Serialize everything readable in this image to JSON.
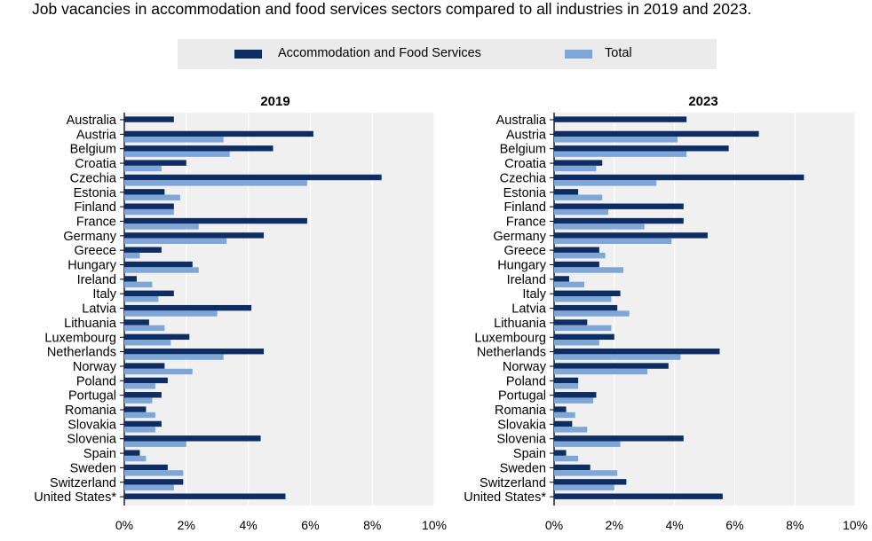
{
  "title": "Job vacancies in accommodation and food services sectors compared to all industries in 2019 and 2023.",
  "colors": {
    "accommodation": "#0e2d63",
    "total": "#7ea7d8",
    "panel": "#f0f0f0",
    "legend_bg": "#ebebeb"
  },
  "legend": {
    "accommodation_label": "Accommodation and Food Services",
    "total_label": "Total"
  },
  "chart_data": [
    {
      "type": "bar",
      "orientation": "horizontal",
      "title": "2019",
      "categories": [
        "Australia",
        "Austria",
        "Belgium",
        "Croatia",
        "Czechia",
        "Estonia",
        "Finland",
        "France",
        "Germany",
        "Greece",
        "Hungary",
        "Ireland",
        "Italy",
        "Latvia",
        "Lithuania",
        "Luxembourg",
        "Netherlands",
        "Norway",
        "Poland",
        "Portugal",
        "Romania",
        "Slovakia",
        "Slovenia",
        "Spain",
        "Sweden",
        "Switzerland",
        "United States*"
      ],
      "series": [
        {
          "name": "Accommodation and Food Services",
          "values": [
            1.6,
            6.1,
            4.8,
            2.0,
            8.3,
            1.3,
            1.6,
            5.9,
            4.5,
            1.2,
            2.2,
            0.4,
            1.6,
            4.1,
            0.8,
            2.1,
            4.5,
            1.3,
            1.4,
            1.2,
            0.7,
            1.2,
            4.4,
            0.5,
            1.4,
            1.9,
            5.2
          ]
        },
        {
          "name": "Total",
          "values": [
            null,
            3.2,
            3.4,
            1.2,
            5.9,
            1.8,
            1.6,
            2.4,
            3.3,
            0.5,
            2.4,
            0.9,
            1.1,
            3.0,
            1.3,
            1.5,
            3.2,
            2.2,
            1.0,
            0.9,
            1.0,
            1.0,
            2.0,
            0.7,
            1.9,
            1.6,
            null
          ]
        }
      ],
      "xlim": [
        0,
        10
      ],
      "xticks": [
        "0%",
        "2%",
        "4%",
        "6%",
        "8%",
        "10%"
      ]
    },
    {
      "type": "bar",
      "orientation": "horizontal",
      "title": "2023",
      "categories": [
        "Australia",
        "Austria",
        "Belgium",
        "Croatia",
        "Czechia",
        "Estonia",
        "Finland",
        "France",
        "Germany",
        "Greece",
        "Hungary",
        "Ireland",
        "Italy",
        "Latvia",
        "Lithuania",
        "Luxembourg",
        "Netherlands",
        "Norway",
        "Poland",
        "Portugal",
        "Romania",
        "Slovakia",
        "Slovenia",
        "Spain",
        "Sweden",
        "Switzerland",
        "United States*"
      ],
      "series": [
        {
          "name": "Accommodation and Food Services",
          "values": [
            4.4,
            6.8,
            5.8,
            1.6,
            8.3,
            0.8,
            4.3,
            4.3,
            5.1,
            1.5,
            1.5,
            0.5,
            2.2,
            2.1,
            1.1,
            2.0,
            5.5,
            3.8,
            0.8,
            1.4,
            0.4,
            0.6,
            4.3,
            0.4,
            1.2,
            2.4,
            5.6
          ]
        },
        {
          "name": "Total",
          "values": [
            null,
            4.1,
            4.4,
            1.4,
            3.4,
            1.6,
            1.8,
            3.0,
            3.9,
            1.7,
            2.3,
            1.0,
            1.9,
            2.5,
            1.9,
            1.5,
            4.2,
            3.1,
            0.8,
            1.3,
            0.7,
            1.1,
            2.2,
            0.8,
            2.1,
            2.0,
            null
          ]
        }
      ],
      "xlim": [
        0,
        10
      ],
      "xticks": [
        "0%",
        "2%",
        "4%",
        "6%",
        "8%",
        "10%"
      ]
    }
  ]
}
